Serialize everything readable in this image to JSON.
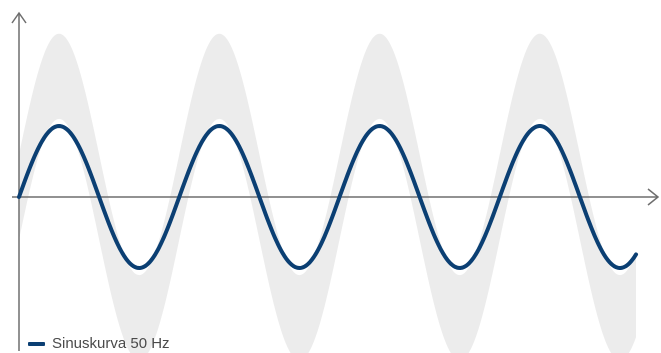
{
  "chart_data": {
    "type": "line",
    "xlabel": "",
    "ylabel": "",
    "grid": false,
    "legend_position": "bottom-left",
    "x_range": [
      0,
      1
    ],
    "y_range": [
      -1,
      1
    ],
    "series": [
      {
        "name": "Sinuskurva 50 Hz",
        "function": "sine",
        "cycles": 3.85,
        "amplitude": 0.5,
        "color": "#0b3f73"
      }
    ],
    "band": {
      "function": "sine",
      "cycles": 3.85,
      "amplitude": 0.85,
      "width": 0.3,
      "color": "#ececec"
    },
    "axis_color": "#6e6e6e"
  }
}
